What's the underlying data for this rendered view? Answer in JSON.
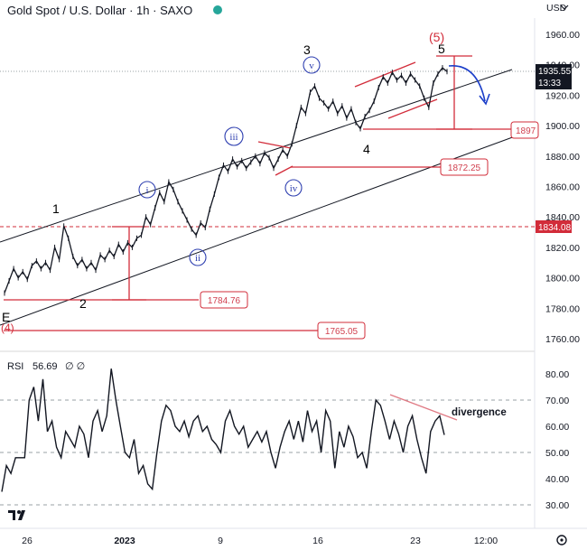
{
  "header": {
    "title": "Gold Spot / U.S. Dollar · 1h · SAXO",
    "currency": "USD",
    "status_color": "#26a69a"
  },
  "price_axis": {
    "ticks": [
      "1960.00",
      "1940.00",
      "1920.00",
      "1900.00",
      "1880.00",
      "1860.00",
      "1840.00",
      "1820.00",
      "1800.00",
      "1780.00",
      "1760.00"
    ],
    "current_price": "1935.55",
    "countdown": "13:33",
    "level_tag": "1834.08"
  },
  "rsi_panel": {
    "label": "RSI",
    "value": "56.69",
    "flags": "∅ ∅",
    "ticks": [
      "80.00",
      "70.00",
      "60.00",
      "50.00",
      "40.00",
      "30.00"
    ],
    "divergence_label": "divergence"
  },
  "time_axis": {
    "ticks": [
      "26",
      "2023",
      "9",
      "16",
      "23",
      "12:00"
    ]
  },
  "annotations": {
    "waves": [
      "1",
      "2",
      "3",
      "4",
      "5",
      "(5)",
      "E",
      "(4)"
    ],
    "subwaves": [
      "i",
      "ii",
      "iii",
      "iv",
      "v"
    ],
    "levels": [
      "1784.76",
      "1765.05",
      "1872.25",
      "1897"
    ]
  },
  "chart_data": [
    {
      "type": "line",
      "title": "Gold Spot / U.S. Dollar · 1h · SAXO",
      "ylim": [
        1750,
        1970
      ],
      "y_ticks": [
        1760,
        1780,
        1800,
        1820,
        1840,
        1860,
        1880,
        1900,
        1920,
        1940,
        1960
      ],
      "x_ticks": [
        "26",
        "2023",
        "9",
        "16",
        "23",
        "12:00"
      ],
      "series": [
        {
          "values": [
            1790,
            1798,
            1806,
            1800,
            1804,
            1799,
            1808,
            1811,
            1806,
            1810,
            1805,
            1820,
            1812,
            1834,
            1826,
            1814,
            1808,
            1812,
            1806,
            1810,
            1805,
            1815,
            1812,
            1818,
            1814,
            1822,
            1817,
            1823,
            1820,
            1826,
            1828,
            1840,
            1835,
            1846,
            1856,
            1850,
            1863,
            1858,
            1850,
            1844,
            1838,
            1832,
            1828,
            1836,
            1833,
            1845,
            1855,
            1866,
            1874,
            1870,
            1878,
            1873,
            1877,
            1872,
            1876,
            1880,
            1875,
            1882,
            1879,
            1872,
            1878,
            1884,
            1880,
            1888,
            1900,
            1912,
            1908,
            1922,
            1926,
            1918,
            1915,
            1911,
            1916,
            1908,
            1913,
            1905,
            1911,
            1902,
            1898,
            1906,
            1910,
            1916,
            1925,
            1932,
            1928,
            1935,
            1930,
            1933,
            1928,
            1934,
            1930,
            1926,
            1918,
            1912,
            1928,
            1934,
            1938,
            1935.55
          ]
        }
      ],
      "annotations": [
        {
          "label": "1",
          "x_index": 13,
          "y": 1840
        },
        {
          "label": "2",
          "x_index": 18,
          "y": 1789
        },
        {
          "label": "3",
          "x_index": 67,
          "y": 1948
        },
        {
          "label": "4",
          "x_index": 78,
          "y": 1884
        },
        {
          "label": "5",
          "x_index": 95,
          "y": 1948
        },
        {
          "label": "(5)",
          "x_index": 94,
          "y": 1956
        },
        {
          "label": "E",
          "x_index": 0,
          "y": 1777
        },
        {
          "label": "(4)",
          "x_index": 0,
          "y": 1767
        },
        {
          "label": "i",
          "x_index": 32,
          "y": 1858
        },
        {
          "label": "ii",
          "x_index": 43,
          "y": 1814
        },
        {
          "label": "iii",
          "x_index": 50,
          "y": 1893
        },
        {
          "label": "iv",
          "x_index": 62,
          "y": 1860
        },
        {
          "label": "v",
          "x_index": 66,
          "y": 1941
        }
      ],
      "levels": [
        {
          "label": "1784.76",
          "y": 1784.76
        },
        {
          "label": "1765.05",
          "y": 1765.05
        },
        {
          "label": "1872.25",
          "y": 1872.25
        },
        {
          "label": "1897",
          "y": 1897
        },
        {
          "label": "1834.08",
          "y": 1834.08
        }
      ]
    },
    {
      "type": "line",
      "title": "RSI",
      "ylim": [
        25,
        85
      ],
      "y_ticks": [
        30,
        40,
        50,
        60,
        70,
        80
      ],
      "series": [
        {
          "name": "RSI",
          "values": [
            35,
            45,
            42,
            48,
            48,
            48,
            70,
            75,
            62,
            78,
            58,
            62,
            52,
            48,
            58,
            55,
            52,
            60,
            57,
            48,
            62,
            66,
            58,
            64,
            82,
            70,
            60,
            50,
            48,
            55,
            42,
            45,
            38,
            36,
            50,
            62,
            68,
            66,
            60,
            58,
            62,
            56,
            62,
            64,
            58,
            60,
            55,
            53,
            50,
            62,
            66,
            60,
            57,
            60,
            52,
            55,
            58,
            54,
            58,
            50,
            44,
            52,
            58,
            62,
            55,
            62,
            54,
            66,
            58,
            62,
            50,
            66,
            62,
            44,
            58,
            52,
            60,
            56,
            48,
            50,
            44,
            58,
            70,
            68,
            62,
            55,
            62,
            57,
            50,
            60,
            64,
            55,
            48,
            42,
            58,
            62,
            64,
            56.69
          ]
        }
      ],
      "text": "divergence"
    }
  ]
}
